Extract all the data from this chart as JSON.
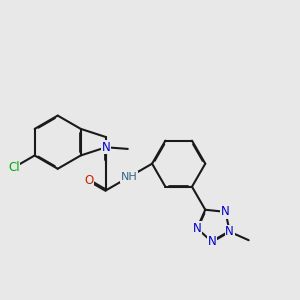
{
  "bg": "#e8e8e8",
  "bc": "#1a1a1a",
  "bw": 1.5,
  "dbo": 0.022,
  "col_N": "#0000cc",
  "col_O": "#cc2200",
  "col_Cl": "#00aa00",
  "col_NH": "#336688",
  "fs": 8.5,
  "xlim": [
    0,
    9.5
  ],
  "ylim": [
    0,
    9.5
  ]
}
